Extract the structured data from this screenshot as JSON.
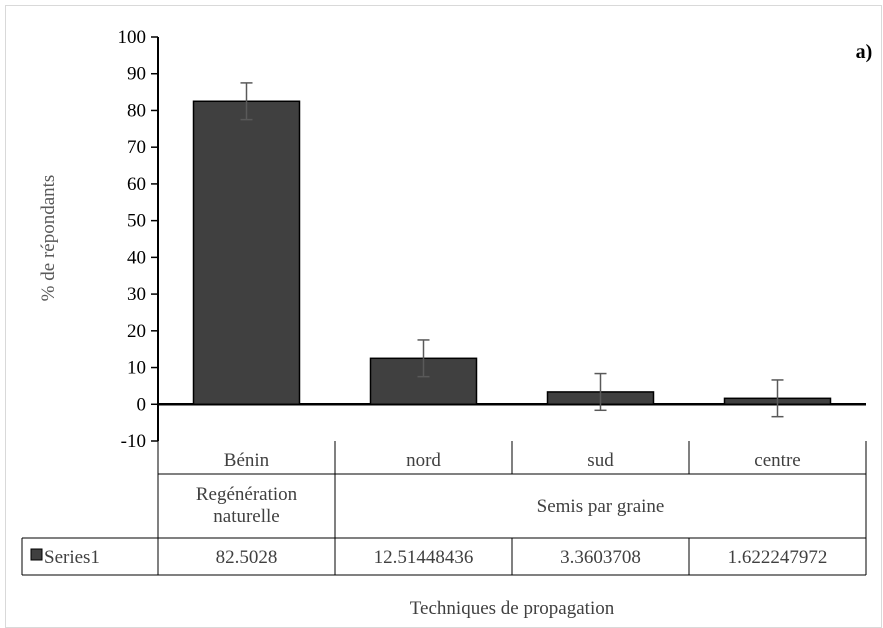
{
  "panel_label": "a)",
  "chart_data": {
    "type": "bar",
    "ylabel": "% de répondants",
    "xlabel": "Techniques de propagation",
    "ylim": [
      -10,
      100
    ],
    "ytick_step": 10,
    "grid": false,
    "categories": [
      "Bénin",
      "nord",
      "sud",
      "centre"
    ],
    "groups": [
      {
        "label": "Regénération naturelle",
        "categories": [
          "Bénin"
        ]
      },
      {
        "label": "Semis par graine",
        "categories": [
          "nord",
          "sud",
          "centre"
        ]
      }
    ],
    "series": [
      {
        "name": "Series1",
        "values": [
          82.5028,
          12.51448436,
          3.3603708,
          1.622247972
        ],
        "error": [
          5,
          5,
          5,
          5
        ],
        "color": "#404040"
      }
    ],
    "data_table_values": [
      "82.5028",
      "12.51448436",
      "3.3603708",
      "1.622247972"
    ]
  }
}
